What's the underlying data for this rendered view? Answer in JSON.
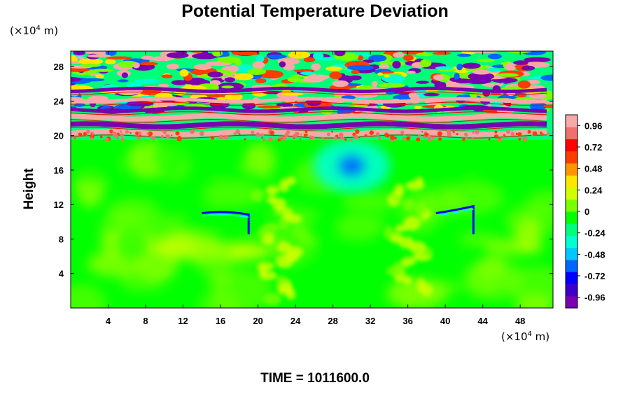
{
  "chart_data": {
    "type": "heatmap",
    "title": "Potential Temperature Deviation",
    "ylabel": "Height",
    "xlabel": "",
    "x_unit_prefix": "(×10",
    "x_unit_exp": "4",
    "x_unit_suffix": " m)",
    "y_unit_prefix": "(×10",
    "y_unit_exp": "4",
    "y_unit_suffix": " m)",
    "xlim": [
      0,
      51.5
    ],
    "ylim": [
      0,
      29.8
    ],
    "x_ticks": [
      "4",
      "8",
      "12",
      "16",
      "20",
      "24",
      "28",
      "32",
      "36",
      "40",
      "44",
      "48"
    ],
    "y_ticks": [
      "4",
      "8",
      "12",
      "16",
      "20",
      "24",
      "28"
    ],
    "colorbar": {
      "range": [
        -1.08,
        1.08
      ],
      "labels": [
        "0.96",
        "0.72",
        "0.48",
        "0.24",
        "0",
        "-0.24",
        "-0.48",
        "-0.72",
        "-0.96"
      ],
      "colors": [
        "#7a00b0",
        "#3c00c8",
        "#0000ff",
        "#0064ff",
        "#00c8ff",
        "#00ffd0",
        "#00ff78",
        "#00ff00",
        "#78ff00",
        "#d2ff00",
        "#ffe600",
        "#ff9600",
        "#ff3c00",
        "#ff0000",
        "#f07070",
        "#f8a8a8"
      ]
    },
    "regions": {
      "background_value": -0.02,
      "stratified_layer_y": [
        19.5,
        29.8
      ],
      "band_centers_y": [
        20.3,
        21.2,
        22.1,
        23.0,
        24.1,
        25.3
      ],
      "plume_centers_x": [
        22,
        36
      ],
      "blue_patch": {
        "x": 30,
        "y": 16.5,
        "value": -0.55
      },
      "thin_streak_left": {
        "x": [
          14,
          19
        ],
        "y": 11.0,
        "value": -0.8
      },
      "thin_streak_right": {
        "x": [
          39,
          43
        ],
        "y": 11.0,
        "value": -0.7
      }
    }
  },
  "footer": {
    "time_label": "TIME = 1011600.0"
  }
}
